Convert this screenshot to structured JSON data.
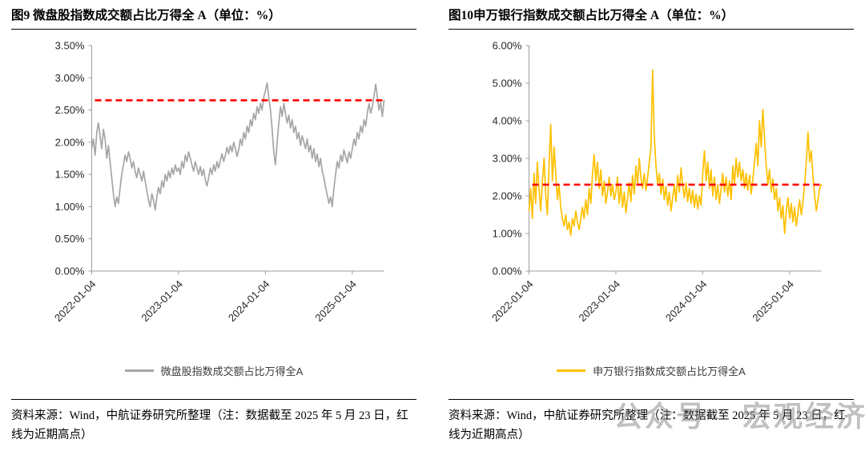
{
  "watermark": {
    "part1": "公众号",
    "part2": "宏观经济"
  },
  "charts": [
    {
      "title": "图9  微盘股指数成交额占比万得全 A（单位：%）",
      "legend_label": "微盘股指数成交额占比万得全A",
      "source_note": "资料来源：Wind，中航证券研究所整理（注：数据截至 2025 年 5 月 23 日，红线为近期高点）",
      "chart_data": {
        "type": "line",
        "series_name": "微盘股指数成交额占比万得全A",
        "series_color": "#a6a6a6",
        "unit": "%",
        "ylim": [
          0,
          3.5
        ],
        "ytick_values": [
          0,
          0.5,
          1.0,
          1.5,
          2.0,
          2.5,
          3.0,
          3.5
        ],
        "ytick_labels": [
          "0.00%",
          "0.50%",
          "1.00%",
          "1.50%",
          "2.00%",
          "2.50%",
          "3.00%",
          "3.50%"
        ],
        "xtick_labels": [
          "2022-01-04",
          "2023-01-04",
          "2024-01-04",
          "2025-01-04"
        ],
        "xtick_indices": [
          0,
          52,
          104,
          156
        ],
        "x_end_date": "2025-05-23",
        "reference_line": {
          "value": 2.65,
          "color": "#ff0000",
          "style": "dashed"
        },
        "values": [
          1.9,
          2.05,
          1.8,
          2.15,
          2.3,
          2.1,
          1.9,
          2.2,
          2.05,
          1.75,
          1.95,
          1.7,
          1.45,
          1.2,
          1.0,
          1.15,
          1.05,
          1.3,
          1.5,
          1.65,
          1.8,
          1.7,
          1.85,
          1.75,
          1.6,
          1.7,
          1.55,
          1.45,
          1.6,
          1.5,
          1.4,
          1.55,
          1.4,
          1.25,
          1.1,
          1.0,
          1.2,
          1.1,
          0.95,
          1.15,
          1.3,
          1.2,
          1.4,
          1.3,
          1.5,
          1.4,
          1.55,
          1.45,
          1.6,
          1.5,
          1.65,
          1.55,
          1.6,
          1.5,
          1.7,
          1.6,
          1.8,
          1.7,
          1.85,
          1.75,
          1.65,
          1.55,
          1.7,
          1.6,
          1.5,
          1.62,
          1.48,
          1.58,
          1.42,
          1.32,
          1.45,
          1.6,
          1.5,
          1.65,
          1.55,
          1.7,
          1.6,
          1.72,
          1.82,
          1.7,
          1.8,
          1.92,
          1.82,
          1.95,
          1.85,
          2.0,
          1.9,
          1.78,
          1.88,
          2.05,
          1.95,
          2.15,
          2.05,
          2.25,
          2.15,
          2.35,
          2.25,
          2.45,
          2.35,
          2.55,
          2.45,
          2.6,
          2.5,
          2.7,
          2.8,
          2.92,
          2.7,
          2.5,
          2.2,
          1.85,
          1.65,
          2.0,
          2.3,
          2.55,
          2.4,
          2.6,
          2.45,
          2.3,
          2.42,
          2.22,
          2.35,
          2.15,
          2.25,
          2.05,
          2.15,
          1.95,
          2.1,
          2.0,
          1.9,
          2.05,
          1.85,
          1.95,
          1.75,
          1.9,
          1.7,
          1.82,
          1.62,
          1.75,
          1.55,
          1.45,
          1.3,
          1.18,
          1.05,
          1.15,
          1.0,
          1.28,
          1.5,
          1.7,
          1.6,
          1.8,
          1.7,
          1.88,
          1.78,
          1.68,
          1.85,
          1.75,
          1.9,
          2.05,
          1.95,
          2.15,
          2.05,
          2.25,
          2.15,
          2.35,
          2.25,
          2.45,
          2.6,
          2.45,
          2.55,
          2.72,
          2.9,
          2.7,
          2.5,
          2.62,
          2.4,
          2.65
        ]
      }
    },
    {
      "title": "图10申万银行指数成交额占比万得全 A（单位：%）",
      "legend_label": "申万银行指数成交额占比万得全A",
      "source_note": "资料来源：Wind，中航证券研究所整理（注：数据截至 2025 年 5 月 23 日，红线为近期高点）",
      "chart_data": {
        "type": "line",
        "series_name": "申万银行指数成交额占比万得全A",
        "series_color": "#ffc000",
        "unit": "%",
        "ylim": [
          0,
          6.0
        ],
        "ytick_values": [
          0,
          1.0,
          2.0,
          3.0,
          4.0,
          5.0,
          6.0
        ],
        "ytick_labels": [
          "0.00%",
          "1.00%",
          "2.00%",
          "3.00%",
          "4.00%",
          "5.00%",
          "6.00%"
        ],
        "xtick_labels": [
          "2022-01-04",
          "2023-01-04",
          "2024-01-04",
          "2025-01-04"
        ],
        "xtick_indices": [
          0,
          52,
          104,
          156
        ],
        "x_end_date": "2025-05-23",
        "reference_line": {
          "value": 2.3,
          "color": "#ff0000",
          "style": "dashed"
        },
        "values": [
          1.6,
          2.2,
          1.4,
          2.6,
          1.8,
          2.9,
          2.2,
          1.6,
          2.4,
          3.0,
          2.0,
          1.5,
          2.8,
          3.9,
          2.4,
          3.3,
          2.6,
          1.9,
          2.3,
          1.7,
          1.4,
          1.2,
          1.5,
          1.1,
          1.3,
          0.95,
          1.4,
          1.2,
          1.6,
          1.3,
          1.1,
          1.4,
          1.7,
          1.4,
          1.9,
          1.5,
          2.2,
          1.8,
          2.6,
          3.1,
          2.4,
          2.9,
          2.2,
          2.7,
          2.0,
          2.4,
          1.8,
          2.1,
          2.5,
          2.0,
          2.3,
          1.9,
          2.1,
          2.5,
          1.8,
          2.3,
          1.7,
          2.1,
          1.55,
          1.95,
          2.35,
          1.85,
          2.55,
          2.05,
          2.8,
          2.3,
          3.0,
          2.5,
          2.2,
          2.6,
          2.15,
          2.5,
          2.9,
          3.3,
          5.35,
          3.6,
          2.8,
          2.3,
          2.6,
          2.05,
          2.45,
          1.9,
          2.25,
          1.75,
          2.1,
          1.6,
          1.95,
          2.3,
          1.85,
          2.55,
          2.1,
          2.75,
          2.25,
          1.95,
          2.35,
          1.85,
          2.2,
          1.8,
          2.15,
          1.7,
          2.05,
          1.65,
          2.0,
          1.75,
          2.6,
          3.2,
          2.4,
          2.9,
          2.2,
          2.7,
          2.0,
          2.5,
          1.9,
          2.3,
          1.8,
          2.2,
          2.6,
          2.1,
          2.5,
          2.0,
          2.4,
          1.9,
          2.8,
          2.3,
          3.0,
          2.5,
          2.9,
          2.4,
          2.7,
          2.2,
          2.6,
          2.15,
          2.55,
          2.05,
          2.45,
          2.9,
          3.4,
          2.8,
          4.0,
          3.3,
          4.3,
          3.5,
          2.8,
          2.3,
          2.7,
          2.1,
          2.45,
          1.9,
          2.2,
          1.6,
          1.95,
          1.4,
          1.75,
          1.0,
          1.6,
          1.95,
          1.4,
          1.8,
          1.3,
          1.7,
          1.2,
          1.55,
          1.9,
          1.5,
          1.85,
          2.3,
          2.9,
          3.7,
          2.9,
          3.2,
          2.5,
          2.0,
          1.6,
          1.9,
          2.2,
          2.3
        ]
      }
    }
  ]
}
